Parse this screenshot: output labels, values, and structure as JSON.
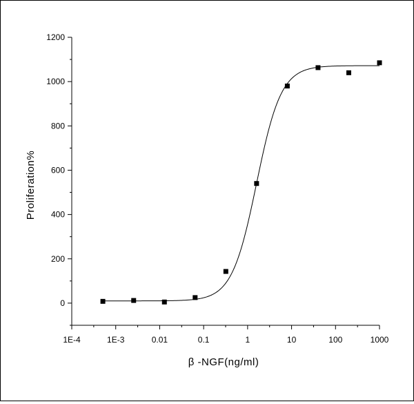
{
  "chart_data": {
    "type": "scatter",
    "xlabel": "β -NGF(ng/ml)",
    "ylabel": "Proliferation%",
    "x_scale": "log",
    "xlim": [
      0.0001,
      1000
    ],
    "ylim": [
      -100,
      1200
    ],
    "x_ticks": [
      {
        "value": 0.0001,
        "label": "1E-4"
      },
      {
        "value": 0.001,
        "label": "1E-3"
      },
      {
        "value": 0.01,
        "label": "0.01"
      },
      {
        "value": 0.1,
        "label": "0.1"
      },
      {
        "value": 1,
        "label": "1"
      },
      {
        "value": 10,
        "label": "10"
      },
      {
        "value": 100,
        "label": "100"
      },
      {
        "value": 1000,
        "label": "1000"
      }
    ],
    "y_ticks": [
      {
        "value": 0,
        "label": "0"
      },
      {
        "value": 200,
        "label": "200"
      },
      {
        "value": 400,
        "label": "400"
      },
      {
        "value": 600,
        "label": "600"
      },
      {
        "value": 800,
        "label": "800"
      },
      {
        "value": 1000,
        "label": "1000"
      },
      {
        "value": 1200,
        "label": "1200"
      }
    ],
    "grid": false,
    "legend": "none",
    "series": [
      {
        "marker": "square",
        "color": "#000000",
        "points": [
          {
            "x": 0.00051,
            "y": 8
          },
          {
            "x": 0.00256,
            "y": 12
          },
          {
            "x": 0.0128,
            "y": 5
          },
          {
            "x": 0.064,
            "y": 25
          },
          {
            "x": 0.32,
            "y": 143
          },
          {
            "x": 1.6,
            "y": 540
          },
          {
            "x": 8,
            "y": 980
          },
          {
            "x": 40,
            "y": 1063
          },
          {
            "x": 200,
            "y": 1040
          },
          {
            "x": 1000,
            "y": 1085
          }
        ]
      }
    ],
    "fit_curve": {
      "type": "logistic",
      "bottom": 10,
      "top": 1072,
      "ec50": 1.6,
      "hill_slope": 1.55,
      "color": "#000000"
    }
  }
}
